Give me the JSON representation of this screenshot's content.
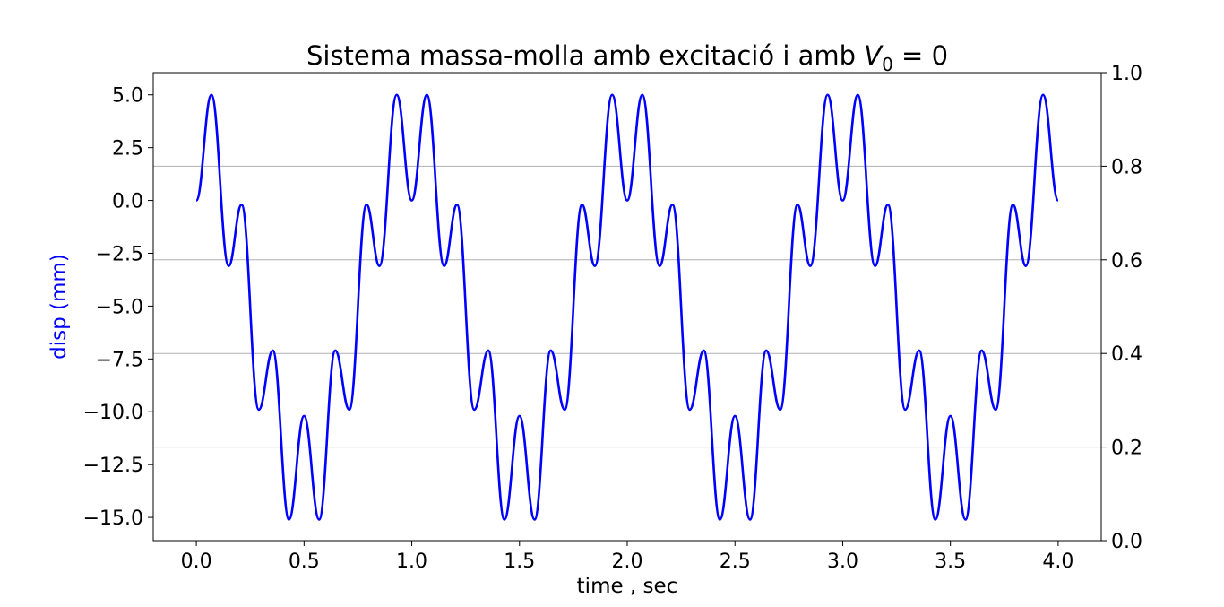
{
  "chart_data": {
    "type": "line",
    "title": {
      "prefix": "Sistema massa-molla amb excitació i amb ",
      "math_var": "V",
      "math_sub": "0",
      "math_rest": " = 0"
    },
    "xlabel": "time , sec",
    "ylabel": "disp (mm)",
    "ylabel_color": "#0000ff",
    "xlim": [
      -0.2,
      4.2
    ],
    "ylim": [
      -16.1,
      6.05
    ],
    "y2lim": [
      0.0,
      1.0
    ],
    "x_ticks": [
      0.0,
      0.5,
      1.0,
      1.5,
      2.0,
      2.5,
      3.0,
      3.5,
      4.0
    ],
    "x_tick_labels": [
      "0.0",
      "0.5",
      "1.0",
      "1.5",
      "2.0",
      "2.5",
      "3.0",
      "3.5",
      "4.0"
    ],
    "y_ticks": [
      5.0,
      2.5,
      0.0,
      -2.5,
      -5.0,
      -7.5,
      -10.0,
      -12.5,
      -15.0
    ],
    "y_tick_labels": [
      "5.0",
      "2.5",
      "0.0",
      "−2.5",
      "−5.0",
      "−7.5",
      "−10.0",
      "−12.5",
      "−15.0"
    ],
    "y2_ticks": [
      0.0,
      0.2,
      0.4,
      0.6,
      0.8,
      1.0
    ],
    "y2_tick_labels": [
      "0.0",
      "0.2",
      "0.4",
      "0.6",
      "0.8",
      "1.0"
    ],
    "grid": "horizontal, right axis",
    "line_color": "#0000ff",
    "series": [
      {
        "x": [
          0.0,
          0.07,
          0.15,
          0.21,
          0.29,
          0.355,
          0.43,
          0.5,
          0.57,
          0.645,
          0.71,
          0.79,
          0.85,
          0.93,
          1.0,
          1.07,
          1.15,
          1.21,
          1.29,
          1.355,
          1.43,
          1.5,
          1.57,
          1.645,
          1.71,
          1.79,
          1.85,
          1.93,
          2.0,
          2.07,
          2.15,
          2.21,
          2.29,
          2.355,
          2.43,
          2.5,
          2.57,
          2.645,
          2.71,
          2.79,
          2.85,
          2.93,
          3.0,
          3.07,
          3.15,
          3.21,
          3.29,
          3.355,
          3.43,
          3.5,
          3.57,
          3.645,
          3.71,
          3.79,
          3.85,
          3.93,
          4.0
        ],
        "y": [
          0.0,
          5.0,
          -3.1,
          -0.2,
          -9.9,
          -7.1,
          -15.1,
          -10.2,
          -15.1,
          -7.1,
          -9.9,
          -0.2,
          -3.1,
          5.0,
          0.0,
          5.0,
          -3.1,
          -0.2,
          -9.9,
          -7.1,
          -15.1,
          -10.2,
          -15.1,
          -7.1,
          -9.9,
          -0.2,
          -3.1,
          5.0,
          0.0,
          5.0,
          -3.1,
          -0.2,
          -9.9,
          -7.1,
          -15.1,
          -10.2,
          -15.1,
          -7.1,
          -9.9,
          -0.2,
          -3.1,
          5.0,
          0.0,
          5.0,
          -3.1,
          -0.2,
          -9.9,
          -7.1,
          -15.1,
          -10.2,
          -15.1,
          -7.1,
          -9.9,
          -0.2,
          -3.1,
          5.0,
          0.0
        ]
      }
    ]
  }
}
